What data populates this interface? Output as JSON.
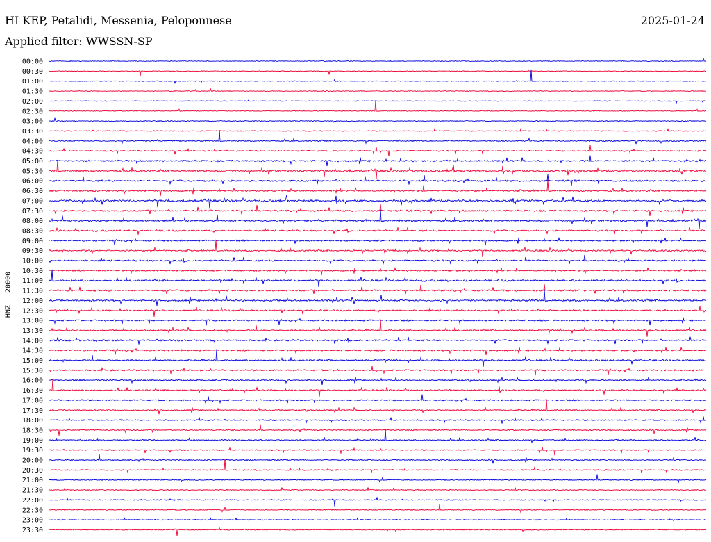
{
  "header": {
    "station": "HI KEP, Petalidi, Messenia, Peloponnese",
    "date": "2025-01-24",
    "filter": "Applied filter: WWSSN-SP",
    "channel": "HNZ - 20000"
  },
  "colors": {
    "trace_a": "#0000dd",
    "trace_b": "#ee0033",
    "text": "#000000"
  },
  "chart_data": {
    "type": "line",
    "title": "HI KEP, Petalidi, Messenia, Peloponnese",
    "ylabel": "HNZ - 20000",
    "row_labels": [
      "00:00",
      "00:30",
      "01:00",
      "01:30",
      "02:00",
      "02:30",
      "03:00",
      "03:30",
      "04:00",
      "04:30",
      "05:00",
      "05:30",
      "06:00",
      "06:30",
      "07:00",
      "07:30",
      "08:00",
      "08:30",
      "09:00",
      "09:30",
      "10:00",
      "10:30",
      "11:00",
      "11:30",
      "12:00",
      "12:30",
      "13:00",
      "13:30",
      "14:00",
      "14:30",
      "15:00",
      "15:30",
      "16:00",
      "16:30",
      "17:00",
      "17:30",
      "18:00",
      "18:30",
      "19:00",
      "19:30",
      "20:00",
      "20:30",
      "21:00",
      "21:30",
      "22:00",
      "22:30",
      "23:00",
      "23:30"
    ],
    "series": [
      {
        "colors_alternate": [
          "#0000dd",
          "#ee0033"
        ]
      }
    ],
    "activity_level": [
      0.05,
      0.05,
      0.08,
      0.06,
      0.05,
      0.06,
      0.12,
      0.18,
      0.3,
      0.35,
      0.6,
      0.75,
      0.65,
      0.6,
      0.75,
      0.6,
      0.7,
      0.55,
      0.5,
      0.5,
      0.55,
      0.5,
      0.6,
      0.6,
      0.65,
      0.5,
      0.5,
      0.55,
      0.55,
      0.5,
      0.55,
      0.5,
      0.5,
      0.45,
      0.4,
      0.4,
      0.35,
      0.3,
      0.35,
      0.3,
      0.3,
      0.3,
      0.2,
      0.2,
      0.2,
      0.2,
      0.15,
      0.15
    ],
    "grid": false
  }
}
